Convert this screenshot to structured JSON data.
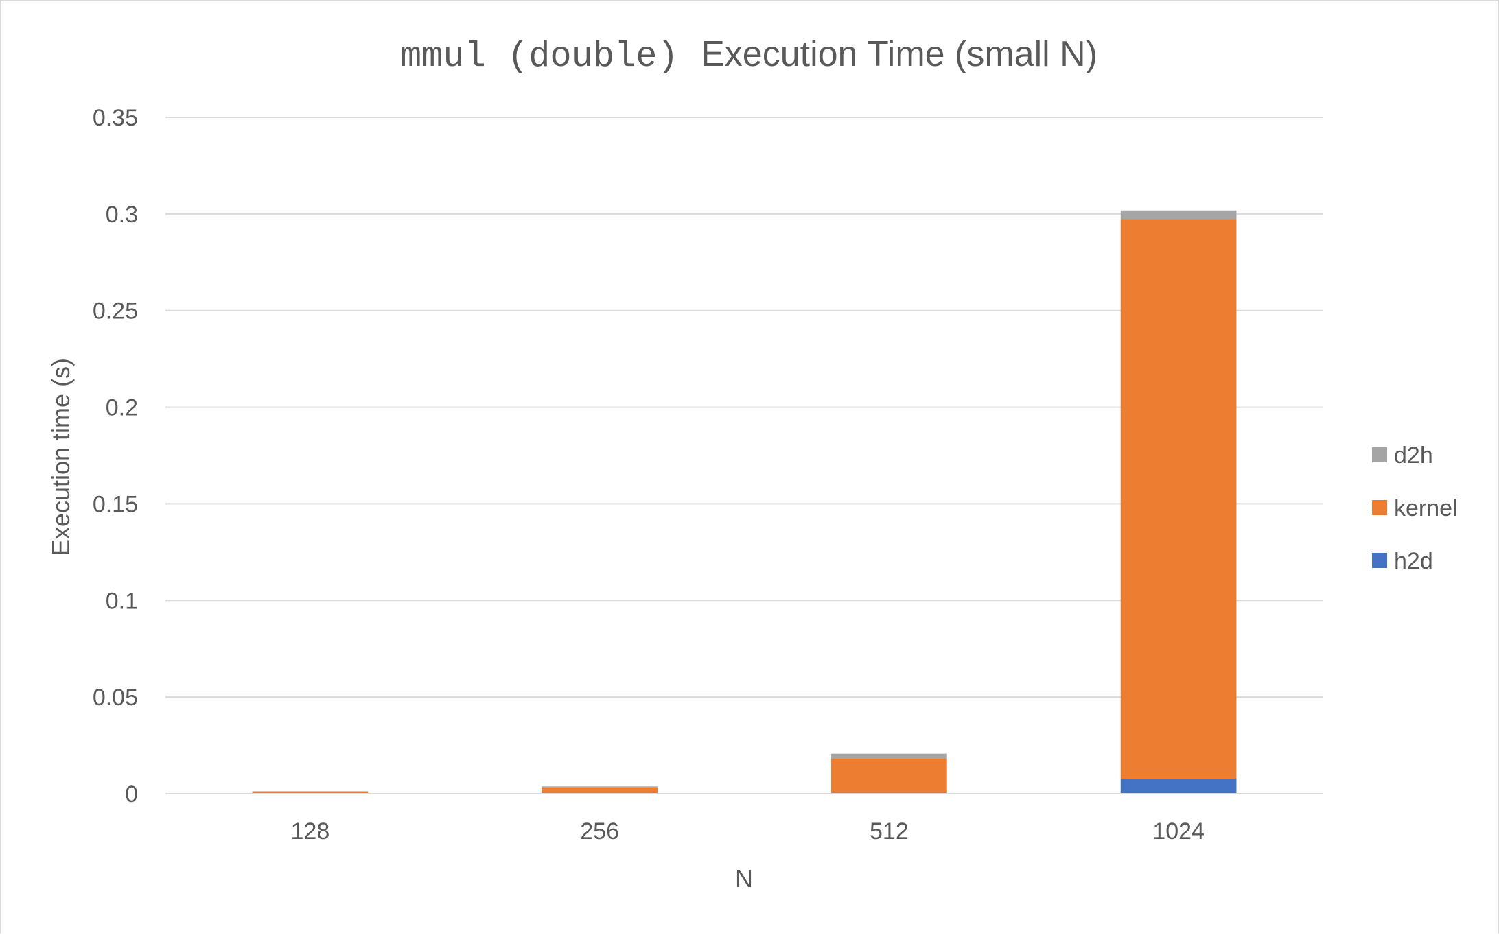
{
  "chart_data": {
    "type": "bar",
    "stacked": true,
    "title": {
      "code": "mmul (double)",
      "text": "Execution Time (small N)"
    },
    "xlabel": "N",
    "ylabel": "Execution time (s)",
    "categories": [
      "128",
      "256",
      "512",
      "1024"
    ],
    "ylim": [
      0,
      0.35
    ],
    "yticks": [
      {
        "value": 0,
        "label": "0"
      },
      {
        "value": 0.05,
        "label": "0.05"
      },
      {
        "value": 0.1,
        "label": "0.1"
      },
      {
        "value": 0.15,
        "label": "0.15"
      },
      {
        "value": 0.2,
        "label": "0.2"
      },
      {
        "value": 0.25,
        "label": "0.25"
      },
      {
        "value": 0.3,
        "label": "0.3"
      },
      {
        "value": 0.35,
        "label": "0.35"
      }
    ],
    "grid": true,
    "legend_position": "right",
    "series": [
      {
        "name": "h2d",
        "color": "#4472C4",
        "values": [
          0.0001,
          0.0002,
          0.0005,
          0.0078
        ]
      },
      {
        "name": "kernel",
        "color": "#ED7D31",
        "values": [
          0.0011,
          0.0031,
          0.0176,
          0.2895
        ]
      },
      {
        "name": "d2h",
        "color": "#A5A5A5",
        "values": [
          0.0001,
          0.0005,
          0.0026,
          0.0045
        ]
      }
    ],
    "legend_order": [
      "d2h",
      "kernel",
      "h2d"
    ]
  }
}
